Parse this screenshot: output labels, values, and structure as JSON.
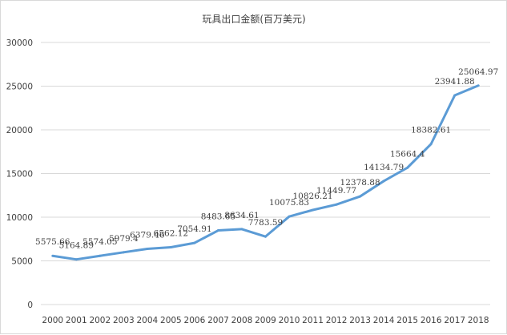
{
  "chart_data": {
    "type": "line",
    "title": "玩具出口金额(百万美元)",
    "categories": [
      "2000",
      "2001",
      "2002",
      "2003",
      "2004",
      "2005",
      "2006",
      "2007",
      "2008",
      "2009",
      "2010",
      "2011",
      "2012",
      "2013",
      "2014",
      "2015",
      "2016",
      "2017",
      "2018"
    ],
    "series": [
      {
        "values": [
          5575.66,
          5164.89,
          5574.05,
          5979.4,
          6379.46,
          6562.12,
          7054.91,
          8483.65,
          8634.61,
          7783.59,
          10075.83,
          10826.21,
          11449.77,
          12378.88,
          14134.79,
          15664.4,
          18382.61,
          23941.88,
          25064.97
        ],
        "labels": [
          "5575.66",
          "5164.89",
          "5574.05",
          "5979.4",
          "6379.46",
          "6562.12",
          "7054.91",
          "8483.65",
          "8634.61",
          "7783.59",
          "10075.83",
          "10826.21",
          "11449.77",
          "12378.88",
          "14134.79",
          "15664.4",
          "18382.61",
          "23941.88",
          "25064.97"
        ]
      }
    ],
    "y_ticks": [
      "0",
      "5000",
      "10000",
      "15000",
      "20000",
      "25000",
      "30000"
    ],
    "ylim": [
      0,
      30000
    ],
    "grid": true,
    "legend": "none",
    "colors": {
      "line": "#5b9bd5",
      "grid": "#d9d9d9",
      "text": "#404040"
    }
  }
}
